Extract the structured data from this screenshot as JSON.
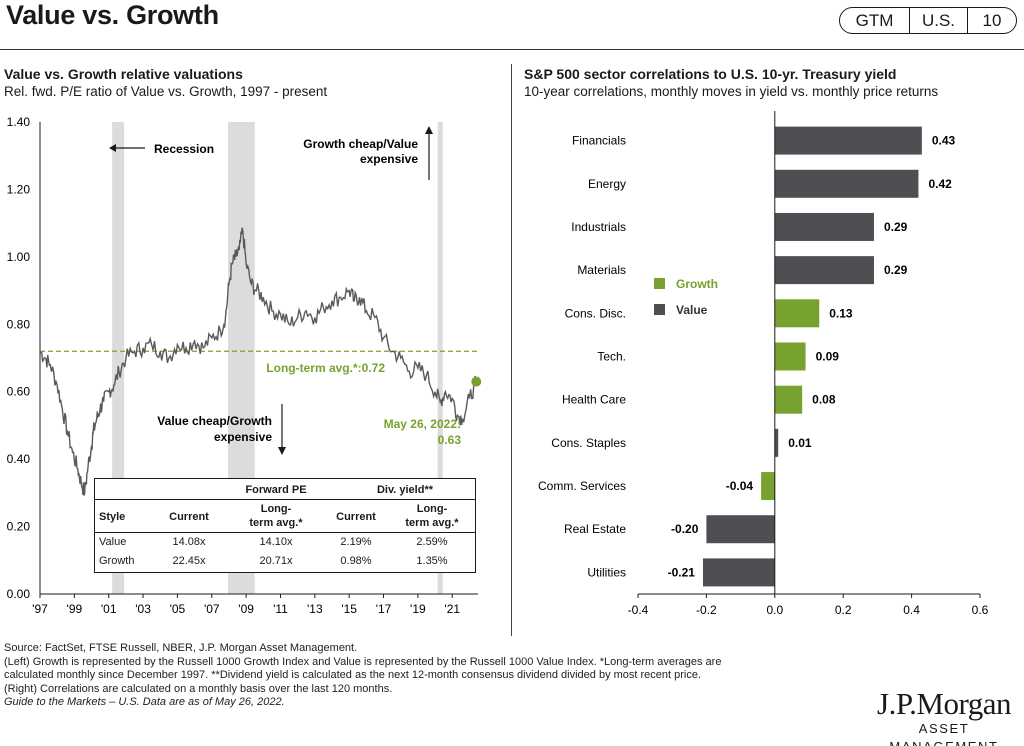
{
  "header": {
    "title": "Value vs. Growth",
    "tags": [
      "GTM",
      "U.S.",
      "10"
    ]
  },
  "left_chart": {
    "title": "Value vs. Growth relative valuations",
    "subtitle": "Rel. fwd. P/E ratio of Value vs. Growth, 1997 - present",
    "annotations": {
      "recession": "Recession",
      "growth_cheap": [
        "Growth cheap/Value",
        "expensive"
      ],
      "value_cheap": [
        "Value cheap/Growth",
        "expensive"
      ],
      "long_term_avg": "Long-term avg.*:0.72",
      "latest": [
        "May 26, 2022:",
        "0.63"
      ]
    },
    "colors": {
      "line": "#5a5a5a",
      "recession": "#dcdcdc",
      "avg": "#78a22f",
      "point": "#78a22f"
    }
  },
  "table": {
    "group_headers": [
      "Forward PE",
      "Div. yield**"
    ],
    "col_headers": [
      "Style",
      "Current",
      [
        "Long-",
        "term avg.*"
      ],
      "Current",
      [
        "Long-",
        "term avg.*"
      ]
    ],
    "rows": [
      [
        "Value",
        "14.08x",
        "14.10x",
        "2.19%",
        "2.59%"
      ],
      [
        "Growth",
        "22.45x",
        "20.71x",
        "0.98%",
        "1.35%"
      ]
    ]
  },
  "right_chart": {
    "title": "S&P 500 sector correlations to U.S. 10-yr. Treasury yield",
    "subtitle": "10-year correlations, monthly moves in yield vs. monthly price returns",
    "legend": [
      "Growth",
      "Value"
    ],
    "colors": {
      "Growth": "#78a22f",
      "Value": "#4d4f53"
    }
  },
  "chart_data": [
    {
      "type": "line",
      "title": "Value vs. Growth relative valuations",
      "subtitle": "Rel. fwd. P/E ratio of Value vs. Growth, 1997 - present",
      "x_ticks": [
        "'97",
        "'99",
        "'01",
        "'03",
        "'05",
        "'07",
        "'09",
        "'11",
        "'13",
        "'15",
        "'17",
        "'19",
        "'21"
      ],
      "y_ticks": [
        "0.00",
        "0.20",
        "0.40",
        "0.60",
        "0.80",
        "1.00",
        "1.20",
        "1.40"
      ],
      "ylim": [
        0,
        1.4
      ],
      "xlim": [
        1997.0,
        2022.5
      ],
      "long_term_avg": 0.72,
      "latest": {
        "date": "May 26, 2022",
        "value": 0.63
      },
      "recessions": [
        [
          2001.2,
          2001.9
        ],
        [
          2007.95,
          2009.5
        ],
        [
          2020.15,
          2020.45
        ]
      ],
      "series": [
        {
          "x": [
            1997.0,
            1997.3,
            1997.6,
            1998.0,
            1998.3,
            1998.6,
            1998.9,
            1999.2,
            1999.4,
            1999.6,
            1999.8,
            2000.0,
            2000.1,
            2000.3,
            2000.5,
            2000.7,
            2001.0,
            2001.3,
            2001.6,
            2002.0,
            2002.5,
            2003.0,
            2003.5,
            2004.0,
            2004.5,
            2005.0,
            2005.5,
            2006.0,
            2006.5,
            2007.0,
            2007.5,
            2007.8,
            2008.0,
            2008.2,
            2008.4,
            2008.6,
            2008.8,
            2009.0,
            2009.3,
            2009.6,
            2010.0,
            2010.5,
            2011.0,
            2011.5,
            2012.0,
            2012.5,
            2013.0,
            2013.5,
            2014.0,
            2014.5,
            2015.0,
            2015.3,
            2015.6,
            2016.0,
            2016.5,
            2017.0,
            2017.5,
            2018.0,
            2018.5,
            2019.0,
            2019.5,
            2020.0,
            2020.3,
            2020.6,
            2021.0,
            2021.3,
            2021.6,
            2022.0,
            2022.4
          ],
          "values": [
            0.72,
            0.7,
            0.68,
            0.62,
            0.55,
            0.48,
            0.42,
            0.37,
            0.33,
            0.3,
            0.38,
            0.44,
            0.48,
            0.52,
            0.55,
            0.57,
            0.6,
            0.62,
            0.66,
            0.7,
            0.72,
            0.73,
            0.74,
            0.72,
            0.7,
            0.74,
            0.73,
            0.75,
            0.73,
            0.76,
            0.78,
            0.82,
            0.92,
            0.98,
            1.0,
            1.02,
            1.08,
            0.98,
            0.92,
            0.9,
            0.88,
            0.84,
            0.83,
            0.8,
            0.82,
            0.84,
            0.82,
            0.85,
            0.87,
            0.88,
            0.9,
            0.87,
            0.88,
            0.84,
            0.82,
            0.76,
            0.72,
            0.7,
            0.66,
            0.67,
            0.65,
            0.6,
            0.57,
            0.6,
            0.58,
            0.53,
            0.52,
            0.58,
            0.63
          ]
        }
      ]
    },
    {
      "type": "bar",
      "orientation": "horizontal",
      "title": "S&P 500 sector correlations to U.S. 10-yr. Treasury yield",
      "subtitle": "10-year correlations, monthly moves in yield vs. monthly price returns",
      "categories": [
        "Financials",
        "Energy",
        "Industrials",
        "Materials",
        "Cons. Disc.",
        "Tech.",
        "Health Care",
        "Cons. Staples",
        "Comm. Services",
        "Real Estate",
        "Utilities"
      ],
      "values": [
        0.43,
        0.42,
        0.29,
        0.29,
        0.13,
        0.09,
        0.08,
        0.01,
        -0.04,
        -0.2,
        -0.21
      ],
      "value_labels": [
        "0.43",
        "0.42",
        "0.29",
        "0.29",
        "0.13",
        "0.09",
        "0.08",
        "0.01",
        "-0.04",
        "-0.20",
        "-0.21"
      ],
      "groups": [
        "Value",
        "Value",
        "Value",
        "Value",
        "Growth",
        "Growth",
        "Growth",
        "Value",
        "Growth",
        "Value",
        "Value"
      ],
      "x_ticks": [
        "-0.4",
        "-0.2",
        "0.0",
        "0.2",
        "0.4",
        "0.6"
      ],
      "xlim": [
        -0.4,
        0.6
      ],
      "legend": [
        "Growth",
        "Value"
      ]
    }
  ],
  "footnotes": [
    "Source: FactSet, FTSE Russell, NBER, J.P. Morgan Asset Management.",
    "(Left) Growth is represented by the Russell 1000 Growth Index and Value is represented by the Russell 1000 Value Index. *Long-term averages are",
    "calculated monthly since December 1997. **Dividend yield is calculated as the next 12-month consensus dividend divided by most recent price.",
    "(Right) Correlations are calculated on a monthly basis over the last 120 months.",
    "Guide to the Markets – U.S. Data are as of May 26, 2022."
  ],
  "logo": {
    "name": "J.P.Morgan",
    "subtitle": "ASSET MANAGEMENT"
  }
}
